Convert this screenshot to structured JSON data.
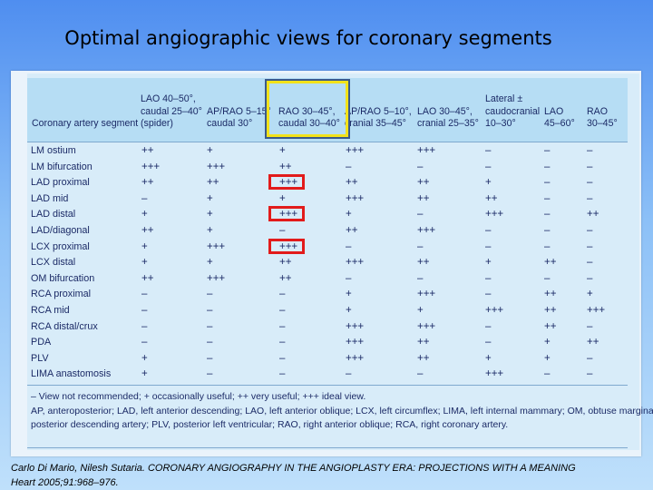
{
  "slide": {
    "title": "Optimal angiographic views for coronary segments"
  },
  "table": {
    "row_header": "Coronary artery segment",
    "columns": [
      {
        "lines": [
          "LAO 40–50°,",
          "caudal 25–40°",
          "(spider)"
        ]
      },
      {
        "lines": [
          "AP/RAO 5–15°",
          "caudal 30°"
        ]
      },
      {
        "lines": [
          "RAO 30–45°,",
          "caudal 30–40°"
        ]
      },
      {
        "lines": [
          "AP/RAO 5–10°,",
          "cranial 35–45°"
        ]
      },
      {
        "lines": [
          "LAO 30–45°,",
          "cranial 25–35°"
        ]
      },
      {
        "lines": [
          "Lateral ±",
          "caudocranial",
          "10–30°"
        ]
      },
      {
        "lines": [
          "LAO",
          "45–60°"
        ]
      },
      {
        "lines": [
          "RAO",
          "30–45°"
        ]
      }
    ],
    "rows": [
      {
        "segment": "LM ostium",
        "values": [
          "++",
          "+",
          "+",
          "+++",
          "+++",
          "–",
          "–",
          "–"
        ]
      },
      {
        "segment": "LM bifurcation",
        "values": [
          "+++",
          "+++",
          "++",
          "–",
          "–",
          "–",
          "–",
          "–"
        ]
      },
      {
        "segment": "LAD proximal",
        "values": [
          "++",
          "++",
          "+++",
          "++",
          "++",
          "+",
          "–",
          "–"
        ]
      },
      {
        "segment": "LAD mid",
        "values": [
          "–",
          "+",
          "+",
          "+++",
          "++",
          "++",
          "–",
          "–"
        ]
      },
      {
        "segment": "LAD distal",
        "values": [
          "+",
          "+",
          "+++",
          "+",
          "–",
          "+++",
          "–",
          "++"
        ]
      },
      {
        "segment": "LAD/diagonal",
        "values": [
          "++",
          "+",
          "–",
          "++",
          "+++",
          "–",
          "–",
          "–"
        ]
      },
      {
        "segment": "LCX proximal",
        "values": [
          "+",
          "+++",
          "+++",
          "–",
          "–",
          "–",
          "–",
          "–"
        ]
      },
      {
        "segment": "LCX distal",
        "values": [
          "+",
          "+",
          "++",
          "+++",
          "++",
          "+",
          "++",
          "–"
        ]
      },
      {
        "segment": "OM bifurcation",
        "values": [
          "++",
          "+++",
          "++",
          "–",
          "–",
          "–",
          "–",
          "–"
        ]
      },
      {
        "segment": "RCA proximal",
        "values": [
          "–",
          "–",
          "–",
          "+",
          "+++",
          "–",
          "++",
          "+"
        ]
      },
      {
        "segment": "RCA mid",
        "values": [
          "–",
          "–",
          "–",
          "+",
          "+",
          "+++",
          "++",
          "+++"
        ]
      },
      {
        "segment": "RCA distal/crux",
        "values": [
          "–",
          "–",
          "–",
          "+++",
          "+++",
          "–",
          "++",
          "–"
        ]
      },
      {
        "segment": "PDA",
        "values": [
          "–",
          "–",
          "–",
          "+++",
          "++",
          "–",
          "+",
          "++"
        ]
      },
      {
        "segment": "PLV",
        "values": [
          "+",
          "–",
          "–",
          "+++",
          "++",
          "+",
          "+",
          "–"
        ]
      },
      {
        "segment": "LIMA anastomosis",
        "values": [
          "+",
          "–",
          "–",
          "–",
          "–",
          "+++",
          "–",
          "–"
        ]
      }
    ],
    "footnotes": [
      "– View not recommended; + occasionally useful; ++ very useful; +++ ideal view.",
      "AP, anteroposterior; LAD, left anterior descending; LAO, left anterior oblique; LCX, left circumflex; LIMA, left internal mammary; OM, obtuse marginal; PDA,",
      "posterior descending artery; PLV, posterior left ventricular; RAO, right anterior oblique; RCA, right coronary artery."
    ]
  },
  "citation": {
    "line1": "Carlo Di Mario, Nilesh Sutaria. CORONARY ANGIOGRAPHY IN THE ANGIOPLASTY ERA: PROJECTIONS WITH A MEANING",
    "line2": "Heart 2005;91:968–976."
  },
  "colors": {
    "highlight_column": "#f2e21a",
    "highlight_cells": "#e21b1b",
    "text": "#1b2a66"
  }
}
